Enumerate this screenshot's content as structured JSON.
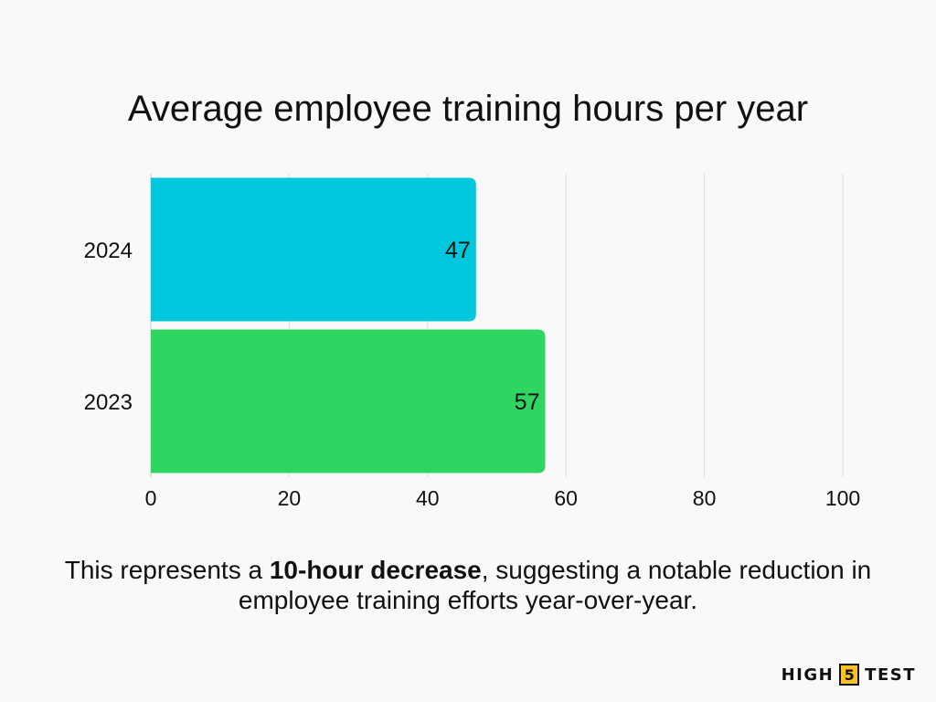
{
  "chart_data": {
    "type": "bar",
    "orientation": "horizontal",
    "title": "Average employee training hours per year",
    "categories": [
      "2024",
      "2023"
    ],
    "values": [
      47,
      57
    ],
    "data_labels": [
      "47",
      "57"
    ],
    "colors": [
      "#00c8dc",
      "#2ed561"
    ],
    "xlim": [
      0,
      100
    ],
    "xticks": [
      0,
      20,
      40,
      60,
      80,
      100
    ],
    "xlabel": "",
    "ylabel": "",
    "grid": true
  },
  "caption": {
    "before": "This represents a ",
    "bold": "10-hour decrease",
    "after": ", suggesting a notable reduction in employee training efforts year-over-year."
  },
  "logo": {
    "left": "HIGH",
    "middle": "5",
    "right": "TEST"
  },
  "colors": {
    "background": "#f9f9f9",
    "text": "#111111",
    "grid": "#dddddd",
    "logo_accent": "#f6c12a"
  }
}
